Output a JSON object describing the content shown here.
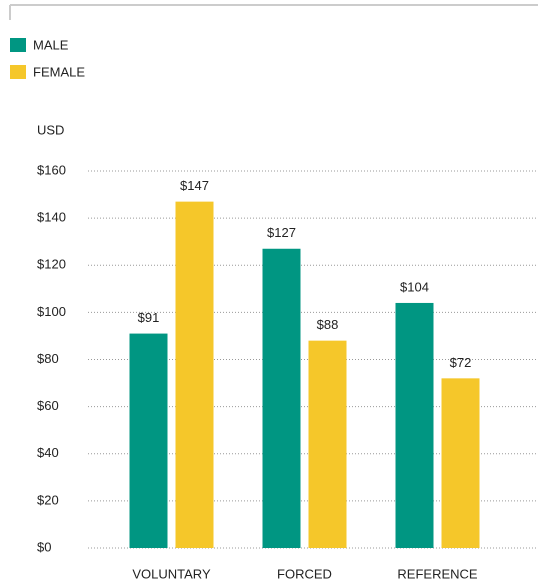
{
  "chart_data": {
    "type": "bar",
    "y_label": "USD",
    "categories": [
      "VOLUNTARY",
      "FORCED",
      "REFERENCE"
    ],
    "series": [
      {
        "name": "MALE",
        "color": "#009682",
        "values": [
          91,
          127,
          104
        ],
        "value_labels": [
          "$91",
          "$127",
          "$104"
        ]
      },
      {
        "name": "FEMALE",
        "color": "#f5c72a",
        "values": [
          147,
          88,
          72
        ],
        "value_labels": [
          "$147",
          "$88",
          "$72"
        ]
      }
    ],
    "ylim": [
      0,
      160
    ],
    "yticks": [
      {
        "value": 0,
        "label": "$0"
      },
      {
        "value": 20,
        "label": "$20"
      },
      {
        "value": 40,
        "label": "$40"
      },
      {
        "value": 60,
        "label": "$60"
      },
      {
        "value": 80,
        "label": "$80"
      },
      {
        "value": 100,
        "label": "$100"
      },
      {
        "value": 120,
        "label": "$120"
      },
      {
        "value": 140,
        "label": "$140"
      },
      {
        "value": 160,
        "label": "$160"
      }
    ],
    "grid": true
  }
}
